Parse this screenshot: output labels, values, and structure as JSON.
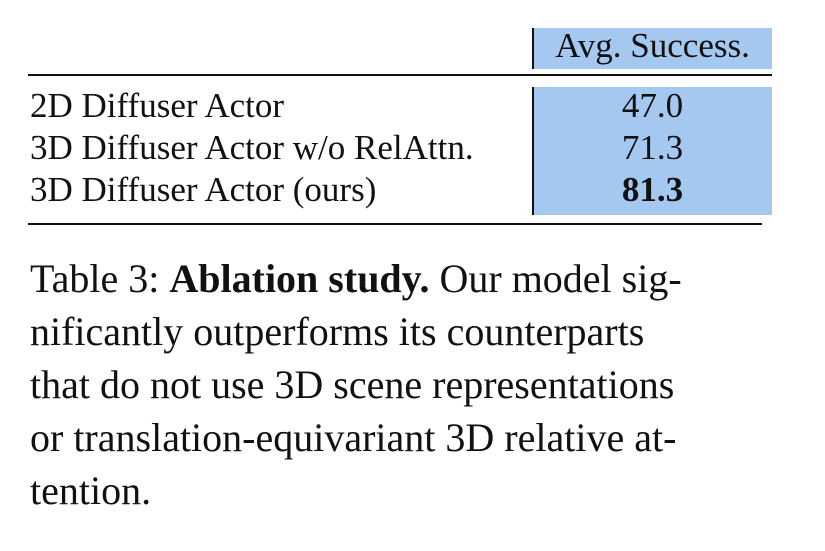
{
  "table": {
    "header": [
      "",
      "Avg. Success."
    ],
    "rows": [
      [
        "2D Diffuser Actor",
        "47.0"
      ],
      [
        "3D Diffuser Actor w/o RelAttn.",
        "71.3"
      ],
      [
        "3D Diffuser Actor (ours)",
        "81.3"
      ]
    ]
  },
  "caption": {
    "label": "Table 3:",
    "bold": "Ablation study.",
    "lines": [
      "Our model sig-",
      "nificantly outperforms its counterparts",
      "that do not use 3D scene representations",
      "or translation-equivariant 3D relative at-",
      "tention."
    ]
  }
}
